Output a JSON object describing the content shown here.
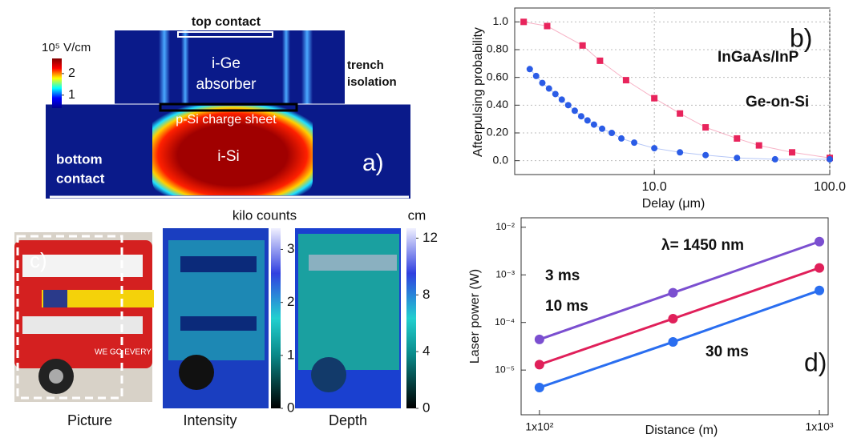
{
  "panels": {
    "a": {
      "label": "a)",
      "top_contact": "top contact",
      "absorber": [
        "i-Ge",
        "absorber"
      ],
      "trench": [
        "trench",
        "isolation"
      ],
      "charge_sheet": "p-Si charge sheet",
      "isi": "i-Si",
      "bottom_contact": [
        "bottom",
        "contact"
      ],
      "colorbar": {
        "title": "10⁵ V/cm",
        "lim": [
          0.4,
          2.7
        ],
        "ticks": [
          1,
          2
        ]
      }
    },
    "c": {
      "label": "c)",
      "captions": [
        "Picture",
        "Intensity",
        "Depth"
      ],
      "colorbars": [
        {
          "title": "kilo counts",
          "lim": [
            0,
            3.4
          ],
          "ticks": [
            0,
            1,
            2,
            3
          ]
        },
        {
          "title": "cm",
          "lim": [
            0,
            12.7
          ],
          "ticks": [
            0,
            4,
            8,
            12
          ]
        }
      ]
    }
  },
  "chart_data": [
    {
      "type": "scatter",
      "xlabel": "Delay (μm)",
      "ylabel": "Afterpulsing probability",
      "annotations": [
        "b)"
      ],
      "xscale": "log",
      "xlim": [
        1.6,
        100
      ],
      "xticks": [
        {
          "value": 10,
          "label": "10.0"
        },
        {
          "value": 100,
          "label": "100.0"
        }
      ],
      "ylim": [
        -0.1,
        1.1
      ],
      "yticks": [
        {
          "value": 0,
          "label": "0.0"
        },
        {
          "value": 0.2,
          "label": "0.20"
        },
        {
          "value": 0.4,
          "label": "0.40"
        },
        {
          "value": 0.6,
          "label": "0.60"
        },
        {
          "value": 0.8,
          "label": "0.80"
        },
        {
          "value": 1,
          "label": "1.0"
        }
      ],
      "grid": true,
      "series": [
        {
          "name": "InGaAs/InP",
          "color": "#e8245c",
          "marker": "square",
          "x": [
            1.8,
            2.45,
            3.9,
            4.9,
            6.9,
            10,
            14,
            19.6,
            29.6,
            39.5,
            61,
            100
          ],
          "values": [
            1.0,
            0.97,
            0.83,
            0.72,
            0.58,
            0.45,
            0.34,
            0.24,
            0.16,
            0.11,
            0.06,
            0.02
          ]
        },
        {
          "name": "Ge-on-Si",
          "color": "#2b5ce6",
          "marker": "circle",
          "x": [
            1.95,
            2.12,
            2.3,
            2.51,
            2.73,
            2.97,
            3.23,
            3.52,
            3.83,
            4.16,
            4.53,
            5.04,
            5.72,
            6.49,
            7.68,
            10,
            14,
            19.6,
            29.6,
            48.8,
            100
          ],
          "values": [
            0.66,
            0.61,
            0.56,
            0.52,
            0.48,
            0.44,
            0.4,
            0.36,
            0.32,
            0.29,
            0.26,
            0.23,
            0.2,
            0.16,
            0.13,
            0.09,
            0.06,
            0.04,
            0.02,
            0.01,
            0.01
          ]
        }
      ]
    },
    {
      "type": "line",
      "xlabel": "Distance (m)",
      "ylabel": "Laser power (W)",
      "annotations": [
        "λ= 1450 nm",
        "d)"
      ],
      "xscale": "log",
      "yscale": "log",
      "xlim": [
        86,
        1075
      ],
      "xticks": [
        {
          "value": 100,
          "label": "1x10²"
        },
        {
          "value": 1000,
          "label": "1x10³"
        }
      ],
      "ylim": [
        1.15e-06,
        0.0158
      ],
      "yticks": [
        {
          "value": 1e-05,
          "label": "10⁻⁵"
        },
        {
          "value": 0.0001,
          "label": "10⁻⁴"
        },
        {
          "value": 0.001,
          "label": "10⁻³"
        },
        {
          "value": 0.01,
          "label": "10⁻²"
        }
      ],
      "grid": false,
      "series": [
        {
          "name": "3 ms",
          "color": "#7b4fd0",
          "marker": "circle",
          "x": [
            100,
            300,
            1000
          ],
          "values": [
            4.4e-05,
            0.00042,
            0.005
          ]
        },
        {
          "name": "10 ms",
          "color": "#e0205a",
          "marker": "circle",
          "x": [
            100,
            300,
            1000
          ],
          "values": [
            1.3e-05,
            0.00012,
            0.0014
          ]
        },
        {
          "name": "30 ms",
          "color": "#2a6ef0",
          "marker": "circle",
          "x": [
            100,
            300,
            1000
          ],
          "values": [
            4.3e-06,
            3.9e-05,
            0.00047
          ]
        }
      ]
    }
  ]
}
